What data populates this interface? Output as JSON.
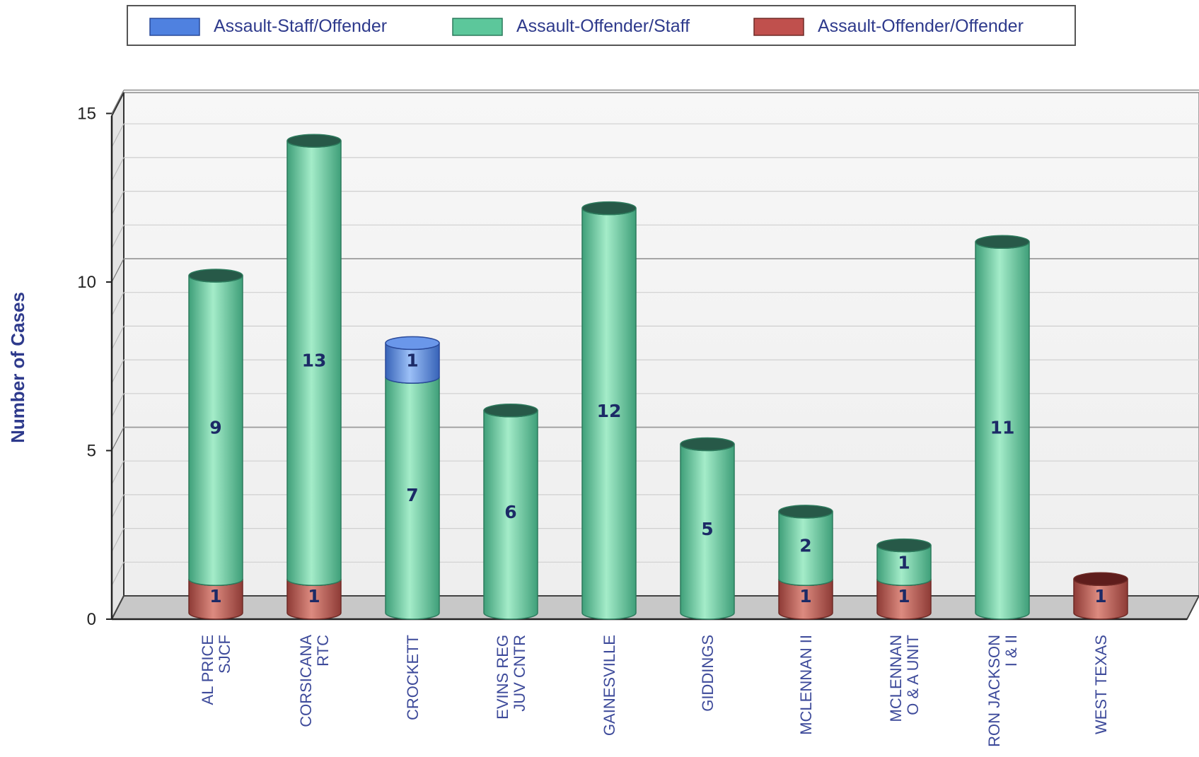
{
  "chart_data": {
    "type": "bar",
    "style": "stacked-3d-cylinder",
    "title": "",
    "xlabel": "",
    "ylabel": "Number of Cases",
    "ylim": [
      0,
      15
    ],
    "yticks": [
      0,
      5,
      10,
      15
    ],
    "grid": true,
    "legend_position": "top",
    "categories": [
      [
        "AL PRICE",
        "SJCF"
      ],
      [
        "CORSICANA",
        "RTC"
      ],
      [
        "CROCKETT"
      ],
      [
        "EVINS REG",
        "JUV CNTR"
      ],
      [
        "GAINESVILLE"
      ],
      [
        "GIDDINGS"
      ],
      [
        "MCLENNAN II"
      ],
      [
        "MCLENNAN",
        "O & A UNIT"
      ],
      [
        "RON JACKSON",
        "I & II"
      ],
      [
        "WEST TEXAS"
      ]
    ],
    "series": [
      {
        "name": "Assault-Offender/Offender",
        "color": "#c0504d",
        "values": [
          1,
          1,
          0,
          0,
          0,
          0,
          1,
          1,
          0,
          1
        ]
      },
      {
        "name": "Assault-Offender/Staff",
        "color": "#5cc79b",
        "values": [
          9,
          13,
          7,
          6,
          12,
          5,
          2,
          1,
          11,
          0
        ]
      },
      {
        "name": "Assault-Staff/Offender",
        "color": "#4f81e0",
        "values": [
          0,
          0,
          1,
          0,
          0,
          0,
          0,
          0,
          0,
          0
        ]
      }
    ],
    "legend_order": [
      "Assault-Staff/Offender",
      "Assault-Offender/Staff",
      "Assault-Offender/Offender"
    ]
  }
}
